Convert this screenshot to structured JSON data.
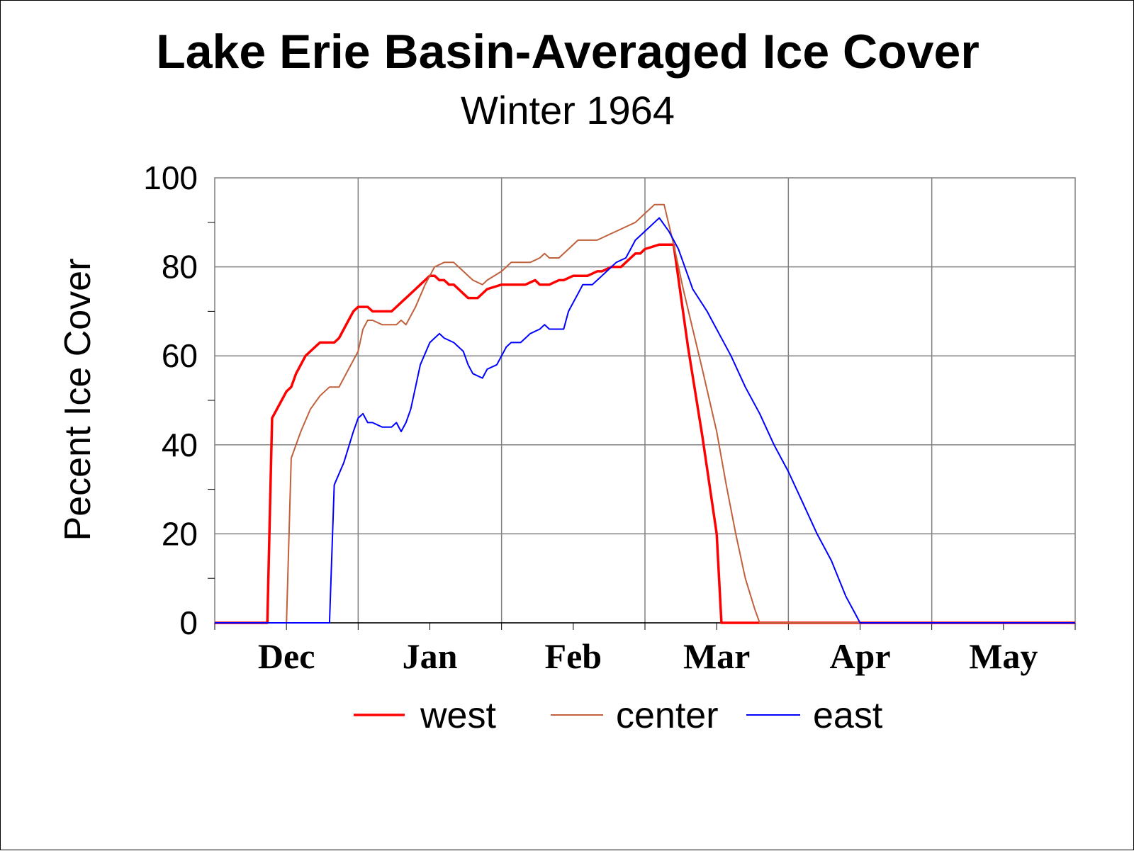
{
  "chart_data": {
    "type": "line",
    "title": "Lake Erie Basin-Averaged Ice Cover",
    "subtitle": "Winter 1964",
    "ylabel": "Pecent Ice Cover",
    "xlabel": "",
    "ylim": [
      0,
      100
    ],
    "yticks": [
      0,
      20,
      40,
      60,
      80,
      100
    ],
    "xlim": [
      0,
      180
    ],
    "month_labels": [
      {
        "label": "Dec",
        "day": 15
      },
      {
        "label": "Jan",
        "day": 45
      },
      {
        "label": "Feb",
        "day": 75
      },
      {
        "label": "Mar",
        "day": 105
      },
      {
        "label": "Apr",
        "day": 135
      },
      {
        "label": "May",
        "day": 165
      }
    ],
    "grid": true,
    "legend_position": "bottom",
    "series": [
      {
        "name": "west",
        "color": "#ff0000",
        "x": [
          0,
          11,
          12,
          14,
          15,
          16,
          17,
          19,
          20,
          21,
          22,
          24,
          25,
          26,
          27,
          28,
          29,
          30,
          31,
          32,
          33,
          35,
          36,
          37,
          38,
          39,
          40,
          42,
          43,
          44,
          45,
          46,
          47,
          48,
          49,
          50,
          51,
          52,
          53,
          55,
          57,
          60,
          62,
          64,
          65,
          67,
          68,
          70,
          72,
          73,
          75,
          77,
          78,
          80,
          81,
          83,
          84,
          85,
          86,
          87,
          88,
          89,
          90,
          93,
          96,
          99,
          102,
          105,
          106,
          108,
          180
        ],
        "y": [
          0,
          0,
          46,
          50,
          52,
          53,
          56,
          60,
          61,
          62,
          63,
          63,
          63,
          64,
          66,
          68,
          70,
          71,
          71,
          71,
          70,
          70,
          70,
          70,
          71,
          72,
          73,
          75,
          76,
          77,
          78,
          78,
          77,
          77,
          76,
          76,
          75,
          74,
          73,
          73,
          75,
          76,
          76,
          76,
          76,
          77,
          76,
          76,
          77,
          77,
          78,
          78,
          78,
          79,
          79,
          80,
          80,
          80,
          81,
          82,
          83,
          83,
          84,
          85,
          85,
          62,
          42,
          20,
          0,
          0,
          0
        ]
      },
      {
        "name": "center",
        "color": "#c0603c",
        "x": [
          0,
          15,
          16,
          18,
          20,
          22,
          24,
          26,
          28,
          30,
          31,
          32,
          33,
          35,
          37,
          38,
          39,
          40,
          42,
          44,
          46,
          48,
          50,
          51,
          52,
          54,
          56,
          57,
          60,
          62,
          64,
          65,
          66,
          68,
          69,
          70,
          72,
          74,
          76,
          78,
          80,
          82,
          84,
          86,
          88,
          89,
          90,
          91,
          92,
          94,
          96,
          98,
          100,
          102,
          105,
          107,
          109,
          111,
          113,
          114,
          115,
          180
        ],
        "y": [
          0,
          0,
          37,
          43,
          48,
          51,
          53,
          53,
          57,
          61,
          66,
          68,
          68,
          67,
          67,
          67,
          68,
          67,
          71,
          76,
          80,
          81,
          81,
          80,
          79,
          77,
          76,
          77,
          79,
          81,
          81,
          81,
          81,
          82,
          83,
          82,
          82,
          84,
          86,
          86,
          86,
          87,
          88,
          89,
          90,
          91,
          92,
          93,
          94,
          94,
          85,
          75,
          66,
          57,
          43,
          31,
          20,
          10,
          3,
          0,
          0,
          0
        ]
      },
      {
        "name": "east",
        "color": "#0000ff",
        "x": [
          0,
          24,
          25,
          27,
          29,
          30,
          31,
          32,
          33,
          35,
          36,
          37,
          38,
          39,
          40,
          41,
          42,
          43,
          45,
          46,
          47,
          48,
          50,
          51,
          52,
          53,
          54,
          56,
          57,
          59,
          60,
          61,
          62,
          63,
          64,
          65,
          66,
          68,
          69,
          70,
          72,
          73,
          74,
          76,
          77,
          78,
          79,
          80,
          81,
          82,
          84,
          86,
          87,
          88,
          89,
          90,
          92,
          93,
          95,
          97,
          100,
          103,
          104,
          108,
          111,
          114,
          117,
          120,
          123,
          126,
          129,
          132,
          134,
          135,
          180
        ],
        "y": [
          0,
          0,
          31,
          36,
          43,
          46,
          47,
          45,
          45,
          44,
          44,
          44,
          45,
          43,
          45,
          48,
          53,
          58,
          63,
          64,
          65,
          64,
          63,
          62,
          61,
          58,
          56,
          55,
          57,
          58,
          60,
          62,
          63,
          63,
          63,
          64,
          65,
          66,
          67,
          66,
          66,
          66,
          70,
          74,
          76,
          76,
          76,
          77,
          78,
          79,
          81,
          82,
          84,
          86,
          87,
          88,
          90,
          91,
          88,
          84,
          75,
          70,
          68,
          60,
          53,
          47,
          40,
          34,
          27,
          20,
          14,
          6,
          2,
          0,
          0
        ]
      }
    ]
  }
}
